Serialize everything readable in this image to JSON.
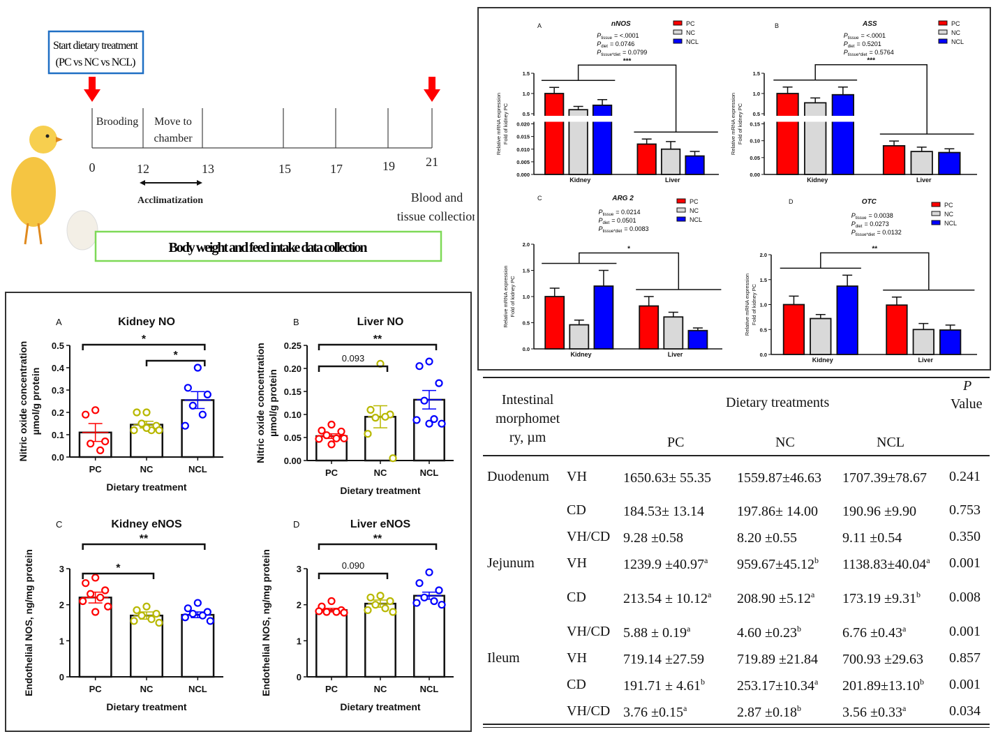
{
  "timeline": {
    "start_box": [
      "Start dietary treatment",
      "(PC vs NC vs NCL)"
    ],
    "phase_labels": [
      "Brooding",
      "Move to",
      "chamber"
    ],
    "days": [
      "0",
      "12",
      "13",
      "15",
      "17",
      "19",
      "21"
    ],
    "acclimatization": "Acclimatization",
    "end_label": [
      "Blood and",
      "tissue collection"
    ],
    "data_box": "Body weight and feed intake data collection",
    "colors": {
      "arrow": "#ff0000",
      "start_box_border": "#1f6fc4",
      "data_box_border": "#7ed957"
    }
  },
  "chart_data": [
    {
      "type": "bar",
      "panel": "A",
      "title": "Kidney NO",
      "ylabel": [
        "Nitric oxide concentration",
        "µmol/g protein"
      ],
      "xlabel": "Dietary treatment",
      "categories": [
        "PC",
        "NC",
        "NCL"
      ],
      "ylim": [
        0,
        0.5
      ],
      "yticks": [
        "0.0",
        "0.1",
        "0.2",
        "0.3",
        "0.4",
        "0.5"
      ],
      "means": [
        0.11,
        0.145,
        0.255
      ],
      "sem": [
        0.04,
        0.015,
        0.038
      ],
      "points": [
        [
          0.21,
          0.19,
          0.07,
          0.06,
          0.03
        ],
        [
          0.2,
          0.2,
          0.14,
          0.15,
          0.12,
          0.12,
          0.12,
          0.13
        ],
        [
          0.4,
          0.31,
          0.28,
          0.23,
          0.19,
          0.14
        ]
      ],
      "brackets": [
        {
          "from": 1,
          "to": 2,
          "label": "*"
        },
        {
          "from": 0,
          "to": 2,
          "label": "*"
        }
      ],
      "colors": [
        "#ff0000",
        "#b8b800",
        "#0000ff"
      ]
    },
    {
      "type": "bar",
      "panel": "B",
      "title": "Liver NO",
      "ylabel": [
        "Nitric oxide concentration",
        "µmol/g protein"
      ],
      "xlabel": "Dietary treatment",
      "categories": [
        "PC",
        "NC",
        "NCL"
      ],
      "ylim": [
        0,
        0.25
      ],
      "yticks": [
        "0.00",
        "0.05",
        "0.10",
        "0.15",
        "0.20",
        "0.25"
      ],
      "means": [
        0.053,
        0.095,
        0.132
      ],
      "sem": [
        0.005,
        0.024,
        0.02
      ],
      "points": [
        [
          0.078,
          0.065,
          0.063,
          0.055,
          0.048,
          0.047,
          0.048,
          0.035
        ],
        [
          0.21,
          0.11,
          0.1,
          0.093,
          0.095,
          0.058,
          0.005
        ],
        [
          0.215,
          0.205,
          0.168,
          0.13,
          0.09,
          0.088,
          0.08,
          0.08
        ]
      ],
      "brackets": [
        {
          "from": 0,
          "to": 1,
          "label": "0.093"
        },
        {
          "from": 0,
          "to": 2,
          "label": "**"
        }
      ],
      "colors": [
        "#ff0000",
        "#b8b800",
        "#0000ff"
      ]
    },
    {
      "type": "bar",
      "panel": "C",
      "title": "Kidney eNOS",
      "ylabel": [
        "Endothelial NOS, ng/mg protein"
      ],
      "xlabel": "Dietary treatment",
      "categories": [
        "PC",
        "NC",
        "NCL"
      ],
      "ylim": [
        0,
        3
      ],
      "yticks": [
        "0",
        "1",
        "2",
        "3"
      ],
      "means": [
        2.2,
        1.7,
        1.72
      ],
      "sem": [
        0.15,
        0.1,
        0.08
      ],
      "points": [
        [
          2.75,
          2.6,
          2.4,
          2.3,
          2.2,
          2.1,
          1.95,
          1.8
        ],
        [
          1.95,
          1.85,
          1.75,
          1.7,
          1.6,
          1.55,
          1.5
        ],
        [
          2.05,
          1.9,
          1.8,
          1.75,
          1.7,
          1.65,
          1.55
        ]
      ],
      "brackets": [
        {
          "from": 0,
          "to": 1,
          "label": "*"
        },
        {
          "from": 0,
          "to": 2,
          "label": "**"
        }
      ],
      "colors": [
        "#ff0000",
        "#b8b800",
        "#0000ff"
      ]
    },
    {
      "type": "bar",
      "panel": "D",
      "title": "Liver eNOS",
      "ylabel": [
        "Endothelial NOS, ng/mg protein"
      ],
      "xlabel": "Dietary treatment",
      "categories": [
        "PC",
        "NC",
        "NCL"
      ],
      "ylim": [
        0,
        3
      ],
      "yticks": [
        "0",
        "1",
        "2",
        "3"
      ],
      "means": [
        1.85,
        2.03,
        2.25
      ],
      "sem": [
        0.05,
        0.1,
        0.1
      ],
      "points": [
        [
          2.1,
          1.95,
          1.85,
          1.8,
          1.8,
          1.82,
          1.78
        ],
        [
          2.25,
          2.2,
          2.1,
          2.0,
          1.9,
          1.85,
          1.8
        ],
        [
          2.9,
          2.6,
          2.4,
          2.2,
          2.1,
          2.05,
          2.0
        ]
      ],
      "brackets": [
        {
          "from": 0,
          "to": 1,
          "label": "0.090"
        },
        {
          "from": 0,
          "to": 2,
          "label": "**"
        }
      ],
      "colors": [
        "#ff0000",
        "#b8b800",
        "#0000ff"
      ]
    },
    {
      "type": "bar",
      "panel": "A",
      "title": "nNOS",
      "pvalues": [
        {
          "sub": "tissue",
          "value": "= <.0001"
        },
        {
          "sub": "diet",
          "value": "= 0.0746"
        },
        {
          "sub": "tissue*diet",
          "value": "= 0.0799"
        }
      ],
      "ylabel": [
        "Relative mRNA expression",
        "Fold of kidney PC"
      ],
      "groups": [
        "Kidney",
        "Liver"
      ],
      "legend": [
        "PC",
        "NC",
        "NCL"
      ],
      "axis_break": {
        "lower": [
          0,
          0.02
        ],
        "upper": [
          0.5,
          1.5
        ]
      },
      "yticks_lower": [
        "0.000",
        "0.005",
        "0.010",
        "0.015",
        "0.020"
      ],
      "yticks_upper": [
        "0.5",
        "1.0",
        "1.5"
      ],
      "series": [
        {
          "name": "PC",
          "values": [
            1.0,
            0.012
          ],
          "sem": [
            0.15,
            0.002
          ]
        },
        {
          "name": "NC",
          "values": [
            0.6,
            0.01
          ],
          "sem": [
            0.08,
            0.003
          ]
        },
        {
          "name": "NCL",
          "values": [
            0.71,
            0.0073
          ],
          "sem": [
            0.14,
            0.0018
          ]
        }
      ],
      "significance": "***",
      "colors": [
        "#ff0000",
        "#d9d9d9",
        "#0000ff"
      ]
    },
    {
      "type": "bar",
      "panel": "B",
      "title": "ASS",
      "pvalues": [
        {
          "sub": "tissue",
          "value": "= <.0001"
        },
        {
          "sub": "diet",
          "value": "= 0.5201"
        },
        {
          "sub": "tissue*diet",
          "value": "= 0.5764"
        }
      ],
      "ylabel": [
        "Relative mRNA expression",
        "Fold of kidney PC"
      ],
      "groups": [
        "Kidney",
        "Liver"
      ],
      "legend": [
        "PC",
        "NC",
        "NCL"
      ],
      "axis_break": {
        "lower": [
          0,
          0.15
        ],
        "upper": [
          0.5,
          1.5
        ]
      },
      "yticks_lower": [
        "0.00",
        "0.05",
        "0.10",
        "0.15"
      ],
      "yticks_upper": [
        "0.5",
        "1.0",
        "1.5"
      ],
      "series": [
        {
          "name": "PC",
          "values": [
            1.0,
            0.085
          ],
          "sem": [
            0.16,
            0.014
          ]
        },
        {
          "name": "NC",
          "values": [
            0.77,
            0.068
          ],
          "sem": [
            0.12,
            0.013
          ]
        },
        {
          "name": "NCL",
          "values": [
            0.97,
            0.065
          ],
          "sem": [
            0.19,
            0.011
          ]
        }
      ],
      "significance": "***",
      "colors": [
        "#ff0000",
        "#d9d9d9",
        "#0000ff"
      ]
    },
    {
      "type": "bar",
      "panel": "C",
      "title": "ARG 2",
      "pvalues": [
        {
          "sub": "tissue",
          "value": "= 0.0214"
        },
        {
          "sub": "diet",
          "value": "= 0.0501"
        },
        {
          "sub": "tissue*diet",
          "value": "= 0.0083"
        }
      ],
      "ylabel": [
        "Relative mRNA expression",
        "Fold of kidney PC"
      ],
      "groups": [
        "Kidney",
        "Liver"
      ],
      "legend": [
        "PC",
        "NC",
        "NCL"
      ],
      "ylim": [
        0,
        2
      ],
      "yticks": [
        "0.0",
        "0.5",
        "1.0",
        "1.5",
        "2.0"
      ],
      "series": [
        {
          "name": "PC",
          "values": [
            1.0,
            0.82
          ],
          "sem": [
            0.16,
            0.18
          ]
        },
        {
          "name": "NC",
          "values": [
            0.46,
            0.61
          ],
          "sem": [
            0.09,
            0.09
          ]
        },
        {
          "name": "NCL",
          "values": [
            1.2,
            0.35
          ],
          "sem": [
            0.3,
            0.05
          ]
        }
      ],
      "significance": "*",
      "colors": [
        "#ff0000",
        "#d9d9d9",
        "#0000ff"
      ]
    },
    {
      "type": "bar",
      "panel": "D",
      "title": "OTC",
      "pvalues": [
        {
          "sub": "tissue",
          "value": "= 0.0038"
        },
        {
          "sub": "diet",
          "value": "= 0.0273"
        },
        {
          "sub": "tissue*diet",
          "value": "= 0.0132"
        }
      ],
      "ylabel": [
        "Relative mRNA expression",
        "Fold of kidney PC"
      ],
      "groups": [
        "Kidney",
        "Liver"
      ],
      "legend": [
        "PC",
        "NC",
        "NCL"
      ],
      "ylim": [
        0,
        2
      ],
      "yticks": [
        "0.0",
        "0.5",
        "1.0",
        "1.5",
        "2.0"
      ],
      "series": [
        {
          "name": "PC",
          "values": [
            1.0,
            0.99
          ],
          "sem": [
            0.17,
            0.16
          ]
        },
        {
          "name": "NC",
          "values": [
            0.72,
            0.5
          ],
          "sem": [
            0.08,
            0.12
          ]
        },
        {
          "name": "NCL",
          "values": [
            1.37,
            0.49
          ],
          "sem": [
            0.22,
            0.1
          ]
        }
      ],
      "significance": "**",
      "colors": [
        "#ff0000",
        "#d9d9d9",
        "#0000ff"
      ]
    }
  ],
  "table": {
    "header_col1": [
      "Intestinal",
      "morphomet",
      "ry, µm"
    ],
    "header_group": "Dietary treatments",
    "header_p": [
      "P",
      "Value"
    ],
    "columns": [
      "PC",
      "NC",
      "NCL"
    ],
    "rows": [
      {
        "segment": "Duodenum",
        "param": "VH",
        "pc": {
          "v": "1650.63± 55.35",
          "sup": ""
        },
        "nc": {
          "v": "1559.87±46.63",
          "sup": ""
        },
        "ncl": {
          "v": "1707.39±78.67",
          "sup": ""
        },
        "p": "0.241"
      },
      {
        "segment": "",
        "param": "CD",
        "pc": {
          "v": "184.53± 13.14",
          "sup": ""
        },
        "nc": {
          "v": "197.86± 14.00",
          "sup": ""
        },
        "ncl": {
          "v": "190.96 ±9.90",
          "sup": ""
        },
        "p": "0.753"
      },
      {
        "segment": "",
        "param": "VH/CD",
        "pc": {
          "v": "9.28 ±0.58",
          "sup": ""
        },
        "nc": {
          "v": "8.20 ±0.55",
          "sup": ""
        },
        "ncl": {
          "v": "9.11 ±0.54",
          "sup": ""
        },
        "p": "0.350"
      },
      {
        "segment": "Jejunum",
        "param": "VH",
        "pc": {
          "v": "1239.9 ±40.97",
          "sup": "a"
        },
        "nc": {
          "v": "959.67±45.12",
          "sup": "b"
        },
        "ncl": {
          "v": "1138.83±40.04",
          "sup": "a"
        },
        "p": "0.001"
      },
      {
        "segment": "",
        "param": "CD",
        "pc": {
          "v": "213.54 ± 10.12",
          "sup": "a"
        },
        "nc": {
          "v": "208.90 ±5.12",
          "sup": "a"
        },
        "ncl": {
          "v": "173.19 ±9.31",
          "sup": "b"
        },
        "p": "0.008"
      },
      {
        "segment": "",
        "param": "VH/CD",
        "pc": {
          "v": "5.88 ± 0.19",
          "sup": "a"
        },
        "nc": {
          "v": "4.60 ±0.23",
          "sup": "b"
        },
        "ncl": {
          "v": "6.76 ±0.43",
          "sup": "a"
        },
        "p": "0.001"
      },
      {
        "segment": "Ileum",
        "param": "VH",
        "pc": {
          "v": "719.14 ±27.59",
          "sup": ""
        },
        "nc": {
          "v": "719.89 ±21.84",
          "sup": ""
        },
        "ncl": {
          "v": "700.93 ±29.63",
          "sup": ""
        },
        "p": "0.857"
      },
      {
        "segment": "",
        "param": "CD",
        "pc": {
          "v": "191.71 ± 4.61",
          "sup": "b"
        },
        "nc": {
          "v": "253.17±10.34",
          "sup": "a"
        },
        "ncl": {
          "v": "201.89±13.10",
          "sup": "b"
        },
        "p": "0.001"
      },
      {
        "segment": "",
        "param": "VH/CD",
        "pc": {
          "v": "3.76 ±0.15",
          "sup": "a"
        },
        "nc": {
          "v": "2.87 ±0.18",
          "sup": "b"
        },
        "ncl": {
          "v": "3.56 ±0.33",
          "sup": "a"
        },
        "p": "0.034"
      }
    ]
  }
}
